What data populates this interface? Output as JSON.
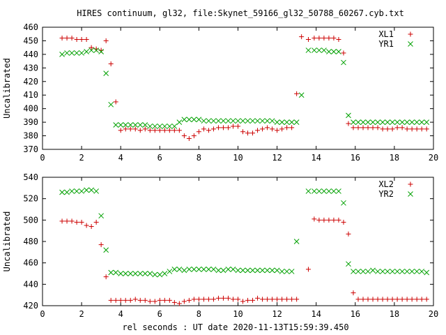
{
  "chart_data": {
    "type": "scatter",
    "title": "HIRES continuum, gl32, file:Skynet_59166_gl32_50788_60267.cyb.txt",
    "xlabel": "rel seconds : UT date 2020-11-13T15:59:39.450",
    "panels": [
      {
        "ylabel": "Uncalibrated",
        "xlim": [
          0,
          20
        ],
        "ylim": [
          370,
          460
        ],
        "xticks": [
          "0",
          "2",
          "4",
          "6",
          "8",
          "10",
          "12",
          "14",
          "16",
          "18",
          "20"
        ],
        "yticks": [
          "370",
          "380",
          "390",
          "400",
          "410",
          "420",
          "430",
          "440",
          "450",
          "460"
        ],
        "legend_position": "top-right",
        "series": [
          {
            "name": "XL1",
            "marker": "plus",
            "color": "#cc0000",
            "x": [
              1.0,
              1.25,
              1.5,
              1.75,
              2.0,
              2.25,
              2.5,
              2.75,
              3.0,
              3.25,
              3.5,
              3.75,
              4.0,
              4.25,
              4.5,
              4.75,
              5.0,
              5.25,
              5.5,
              5.75,
              6.0,
              6.25,
              6.5,
              6.75,
              7.0,
              7.25,
              7.5,
              7.75,
              8.0,
              8.25,
              8.5,
              8.75,
              9.0,
              9.25,
              9.5,
              9.75,
              10.0,
              10.25,
              10.5,
              10.75,
              11.0,
              11.25,
              11.5,
              11.75,
              12.0,
              12.25,
              12.5,
              12.75,
              13.0,
              13.25,
              13.6,
              13.9,
              14.15,
              14.4,
              14.65,
              14.9,
              15.15,
              15.4,
              15.65,
              15.9,
              16.15,
              16.4,
              16.65,
              16.9,
              17.15,
              17.4,
              17.65,
              17.9,
              18.15,
              18.4,
              18.65,
              18.9,
              19.15,
              19.4,
              19.65
            ],
            "y": [
              452,
              452,
              452,
              451,
              451,
              451,
              445,
              444,
              443,
              450,
              433,
              405,
              384,
              385,
              385,
              385,
              384,
              385,
              384,
              384,
              384,
              384,
              384,
              384,
              384,
              380,
              378,
              380,
              383,
              385,
              384,
              385,
              386,
              386,
              386,
              387,
              387,
              383,
              382,
              382,
              384,
              385,
              386,
              385,
              384,
              385,
              386,
              386,
              411,
              453,
              451,
              452,
              452,
              452,
              452,
              452,
              451,
              441,
              389,
              386,
              386,
              386,
              386,
              386,
              386,
              385,
              385,
              385,
              386,
              386,
              385,
              385,
              385,
              385,
              385
            ]
          },
          {
            "name": "YR1",
            "marker": "cross",
            "color": "#00a000",
            "x": [
              1.0,
              1.25,
              1.5,
              1.75,
              2.0,
              2.25,
              2.5,
              2.75,
              3.0,
              3.25,
              3.5,
              3.75,
              4.0,
              4.25,
              4.5,
              4.75,
              5.0,
              5.25,
              5.5,
              5.75,
              6.0,
              6.25,
              6.5,
              6.75,
              7.0,
              7.25,
              7.5,
              7.75,
              8.0,
              8.25,
              8.5,
              8.75,
              9.0,
              9.25,
              9.5,
              9.75,
              10.0,
              10.25,
              10.5,
              10.75,
              11.0,
              11.25,
              11.5,
              11.75,
              12.0,
              12.25,
              12.5,
              12.75,
              13.0,
              13.25,
              13.6,
              13.9,
              14.15,
              14.4,
              14.65,
              14.9,
              15.15,
              15.4,
              15.65,
              15.9,
              16.15,
              16.4,
              16.65,
              16.9,
              17.15,
              17.4,
              17.65,
              17.9,
              18.15,
              18.4,
              18.65,
              18.9,
              19.15,
              19.4,
              19.65
            ],
            "y": [
              440,
              441,
              441,
              441,
              441,
              442,
              443,
              443,
              442,
              426,
              403,
              388,
              388,
              388,
              388,
              388,
              388,
              388,
              387,
              387,
              387,
              387,
              387,
              387,
              390,
              392,
              392,
              392,
              392,
              391,
              391,
              391,
              391,
              391,
              391,
              391,
              391,
              391,
              391,
              391,
              391,
              391,
              391,
              391,
              390,
              390,
              390,
              390,
              390,
              410,
              443,
              443,
              443,
              443,
              442,
              442,
              442,
              434,
              395,
              390,
              390,
              390,
              390,
              390,
              390,
              390,
              390,
              390,
              390,
              390,
              390,
              390,
              390,
              390,
              390
            ]
          }
        ]
      },
      {
        "ylabel": "Uncalibrated",
        "xlim": [
          0,
          20
        ],
        "ylim": [
          420,
          540
        ],
        "xticks": [
          "0",
          "2",
          "4",
          "6",
          "8",
          "10",
          "12",
          "14",
          "16",
          "18",
          "20"
        ],
        "yticks": [
          "420",
          "440",
          "460",
          "480",
          "500",
          "520",
          "540"
        ],
        "legend_position": "top-right",
        "series": [
          {
            "name": "XL2",
            "marker": "plus",
            "color": "#cc0000",
            "x": [
              1.0,
              1.25,
              1.5,
              1.75,
              2.0,
              2.25,
              2.5,
              2.75,
              3.0,
              3.25,
              3.5,
              3.75,
              4.0,
              4.25,
              4.5,
              4.75,
              5.0,
              5.25,
              5.5,
              5.75,
              6.0,
              6.25,
              6.5,
              6.75,
              7.0,
              7.25,
              7.5,
              7.75,
              8.0,
              8.25,
              8.5,
              8.75,
              9.0,
              9.25,
              9.5,
              9.75,
              10.0,
              10.25,
              10.5,
              10.75,
              11.0,
              11.25,
              11.5,
              11.75,
              12.0,
              12.25,
              12.5,
              12.75,
              13.0,
              13.6,
              13.9,
              14.15,
              14.4,
              14.65,
              14.9,
              15.15,
              15.4,
              15.65,
              15.9,
              16.15,
              16.4,
              16.65,
              16.9,
              17.15,
              17.4,
              17.65,
              17.9,
              18.15,
              18.4,
              18.65,
              18.9,
              19.15,
              19.4,
              19.65
            ],
            "y": [
              499,
              499,
              499,
              498,
              498,
              495,
              494,
              498,
              477,
              447,
              425,
              425,
              425,
              425,
              425,
              426,
              425,
              425,
              424,
              424,
              425,
              425,
              425,
              423,
              422,
              424,
              425,
              426,
              426,
              426,
              426,
              426,
              427,
              427,
              427,
              426,
              426,
              424,
              425,
              425,
              427,
              426,
              426,
              426,
              426,
              426,
              426,
              426,
              426,
              454,
              501,
              500,
              500,
              500,
              500,
              500,
              498,
              487,
              432,
              426,
              426,
              426,
              426,
              426,
              426,
              426,
              426,
              426,
              426,
              426,
              426,
              426,
              426,
              426
            ]
          },
          {
            "name": "YR2",
            "marker": "cross",
            "color": "#00a000",
            "x": [
              1.0,
              1.25,
              1.5,
              1.75,
              2.0,
              2.25,
              2.5,
              2.75,
              3.0,
              3.25,
              3.5,
              3.75,
              4.0,
              4.25,
              4.5,
              4.75,
              5.0,
              5.25,
              5.5,
              5.75,
              6.0,
              6.25,
              6.5,
              6.75,
              7.0,
              7.25,
              7.5,
              7.75,
              8.0,
              8.25,
              8.5,
              8.75,
              9.0,
              9.25,
              9.5,
              9.75,
              10.0,
              10.25,
              10.5,
              10.75,
              11.0,
              11.25,
              11.5,
              11.75,
              12.0,
              12.25,
              12.5,
              12.75,
              13.0,
              13.6,
              13.9,
              14.15,
              14.4,
              14.65,
              14.9,
              15.15,
              15.4,
              15.65,
              15.9,
              16.15,
              16.4,
              16.65,
              16.9,
              17.15,
              17.4,
              17.65,
              17.9,
              18.15,
              18.4,
              18.65,
              18.9,
              19.15,
              19.4,
              19.65
            ],
            "y": [
              526,
              526,
              527,
              527,
              527,
              528,
              528,
              527,
              504,
              472,
              451,
              451,
              450,
              450,
              450,
              450,
              450,
              450,
              450,
              449,
              449,
              450,
              452,
              454,
              454,
              453,
              454,
              454,
              454,
              454,
              454,
              454,
              453,
              453,
              454,
              454,
              453,
              453,
              453,
              453,
              453,
              453,
              453,
              453,
              453,
              452,
              452,
              452,
              480,
              527,
              527,
              527,
              527,
              527,
              527,
              527,
              516,
              459,
              452,
              452,
              452,
              452,
              453,
              452,
              452,
              452,
              452,
              452,
              452,
              452,
              452,
              452,
              452,
              451
            ]
          }
        ]
      }
    ]
  }
}
